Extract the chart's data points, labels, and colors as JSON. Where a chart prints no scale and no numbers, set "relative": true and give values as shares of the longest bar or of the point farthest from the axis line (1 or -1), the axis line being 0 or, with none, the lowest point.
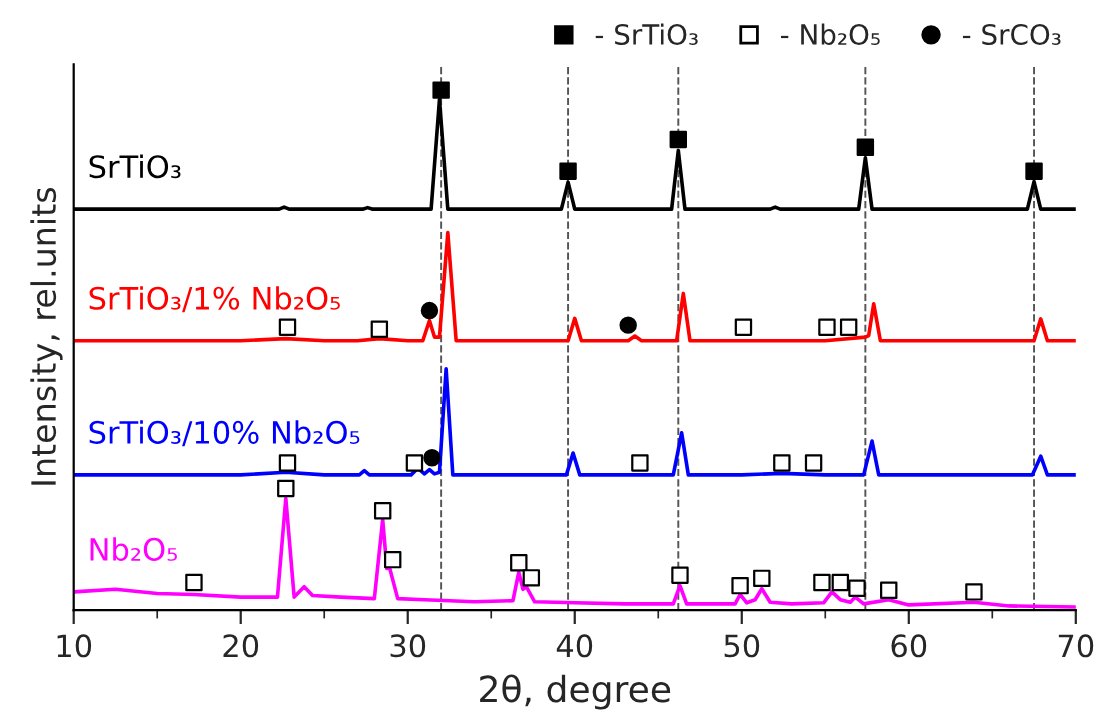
{
  "chart_data": {
    "type": "line",
    "relative": true,
    "xlabel": "2θ, degree",
    "ylabel": "Intensity, rel.units",
    "xlim": [
      10,
      70
    ],
    "xticks": [
      10,
      20,
      30,
      40,
      50,
      60,
      70
    ],
    "legend": "top right",
    "grid": false,
    "tick_labels": "x",
    "ref_lines": [
      {
        "axis": "x",
        "value": 32.0,
        "color": "#555555",
        "line_style": "dashed"
      },
      {
        "axis": "x",
        "value": 39.6,
        "color": "#555555",
        "line_style": "dashed"
      },
      {
        "axis": "x",
        "value": 46.2,
        "color": "#555555",
        "line_style": "dashed"
      },
      {
        "axis": "x",
        "value": 57.4,
        "color": "#555555",
        "line_style": "dashed"
      },
      {
        "axis": "x",
        "value": 67.5,
        "color": "#555555",
        "line_style": "dashed"
      }
    ],
    "series": [
      {
        "type": "line",
        "name": "SrTiO₃",
        "color": "#000000",
        "x": [
          10,
          15,
          20,
          22.3,
          22.6,
          22.9,
          25,
          27.3,
          27.6,
          27.9,
          30,
          31.4,
          31.9,
          32.4,
          33,
          36,
          39.2,
          39.6,
          40.0,
          42,
          45.8,
          46.2,
          46.6,
          49,
          51.7,
          52.0,
          52.3,
          55,
          57.0,
          57.4,
          57.8,
          60,
          65,
          67.1,
          67.5,
          67.9,
          70
        ],
        "values": [
          0.771,
          0.771,
          0.771,
          0.771,
          0.775,
          0.771,
          0.771,
          0.771,
          0.774,
          0.771,
          0.771,
          0.771,
          0.982,
          0.771,
          0.771,
          0.771,
          0.771,
          0.823,
          0.771,
          0.771,
          0.771,
          0.884,
          0.771,
          0.771,
          0.771,
          0.775,
          0.771,
          0.771,
          0.771,
          0.87,
          0.771,
          0.771,
          0.771,
          0.771,
          0.824,
          0.771,
          0.771
        ]
      },
      {
        "type": "line",
        "name": "SrTiO₃/1% Nb₂O₅",
        "color": "#ff0000",
        "x": [
          10,
          15,
          20,
          22.7,
          25,
          27,
          28.3,
          30,
          30.9,
          31.3,
          31.6,
          31.9,
          32.4,
          32.9,
          35,
          37,
          39.6,
          40.0,
          40.4,
          43.2,
          43.6,
          44,
          46.1,
          46.5,
          46.9,
          50,
          55,
          57.4,
          57.6,
          57.9,
          58.3,
          62,
          67.5,
          67.9,
          68.3,
          70
        ],
        "values": [
          0.518,
          0.518,
          0.518,
          0.522,
          0.518,
          0.518,
          0.522,
          0.518,
          0.518,
          0.557,
          0.525,
          0.525,
          0.726,
          0.518,
          0.518,
          0.518,
          0.518,
          0.561,
          0.518,
          0.518,
          0.527,
          0.518,
          0.518,
          0.609,
          0.518,
          0.518,
          0.518,
          0.525,
          0.528,
          0.589,
          0.518,
          0.518,
          0.518,
          0.56,
          0.518,
          0.518
        ]
      },
      {
        "type": "line",
        "name": "SrTiO₃/10% Nb₂O₅",
        "color": "#0000ff",
        "x": [
          10,
          15,
          20,
          22.7,
          25,
          27.1,
          27.4,
          27.7,
          30.2,
          30.6,
          31.0,
          31.3,
          31.6,
          31.9,
          32.3,
          32.7,
          35,
          39.5,
          39.9,
          40.3,
          43,
          45.9,
          46.4,
          46.8,
          50,
          52.4,
          55,
          57.3,
          57.8,
          58.2,
          62,
          67.4,
          67.9,
          68.3,
          70
        ],
        "values": [
          0.26,
          0.26,
          0.26,
          0.265,
          0.26,
          0.26,
          0.268,
          0.26,
          0.26,
          0.273,
          0.262,
          0.27,
          0.262,
          0.265,
          0.464,
          0.26,
          0.26,
          0.26,
          0.302,
          0.26,
          0.26,
          0.26,
          0.341,
          0.26,
          0.26,
          0.263,
          0.26,
          0.26,
          0.325,
          0.26,
          0.26,
          0.26,
          0.296,
          0.26,
          0.26
        ]
      },
      {
        "type": "line",
        "name": "Nb₂O₅",
        "color": "#ff00ff",
        "x": [
          10,
          12.5,
          15,
          17.2,
          20,
          22.2,
          22.7,
          23.2,
          23.8,
          24.3,
          26,
          28.0,
          28.5,
          28.75,
          28.9,
          29.4,
          31,
          34,
          36.3,
          36.65,
          36.9,
          37.1,
          37.6,
          40,
          43,
          45.9,
          46.3,
          46.7,
          48,
          49.6,
          49.9,
          50.3,
          50.8,
          51.2,
          51.7,
          53,
          54.9,
          55.4,
          55.9,
          56.5,
          56.8,
          57.3,
          58.8,
          60,
          63.9,
          66,
          70
        ],
        "values": [
          0.035,
          0.04,
          0.032,
          0.03,
          0.025,
          0.025,
          0.215,
          0.025,
          0.045,
          0.028,
          0.025,
          0.022,
          0.174,
          0.08,
          0.083,
          0.022,
          0.02,
          0.016,
          0.018,
          0.073,
          0.04,
          0.045,
          0.016,
          0.014,
          0.012,
          0.012,
          0.047,
          0.012,
          0.012,
          0.012,
          0.03,
          0.014,
          0.02,
          0.041,
          0.015,
          0.012,
          0.014,
          0.035,
          0.02,
          0.015,
          0.025,
          0.012,
          0.02,
          0.01,
          0.015,
          0.008,
          0.006
        ]
      },
      {
        "type": "scatter",
        "name": "- SrTiO₃",
        "color": "#000000",
        "marker": "square",
        "x": [
          32.0,
          39.6,
          46.2,
          57.4,
          67.5
        ],
        "values": [
          1.0,
          0.844,
          0.905,
          0.89,
          0.844
        ]
      },
      {
        "type": "scatter",
        "name": "- Nb₂O₅",
        "color": "#ffffff",
        "marker": "square",
        "x": [
          22.8,
          28.3,
          50.1,
          55.1,
          56.4,
          22.8,
          30.4,
          43.9,
          52.4,
          54.3,
          17.2,
          22.7,
          28.5,
          29.1,
          36.65,
          37.4,
          46.3,
          49.9,
          51.2,
          54.8,
          55.9,
          56.9,
          58.8,
          63.9
        ],
        "values": [
          0.544,
          0.54,
          0.544,
          0.544,
          0.544,
          0.283,
          0.283,
          0.283,
          0.283,
          0.283,
          0.053,
          0.234,
          0.191,
          0.097,
          0.091,
          0.062,
          0.067,
          0.047,
          0.061,
          0.053,
          0.053,
          0.042,
          0.038,
          0.035
        ]
      },
      {
        "type": "scatter",
        "name": "- SrCO₃",
        "color": "#000000",
        "marker": "circle",
        "x": [
          31.3,
          43.2,
          31.45
        ],
        "values": [
          0.576,
          0.548,
          0.293
        ]
      }
    ]
  }
}
